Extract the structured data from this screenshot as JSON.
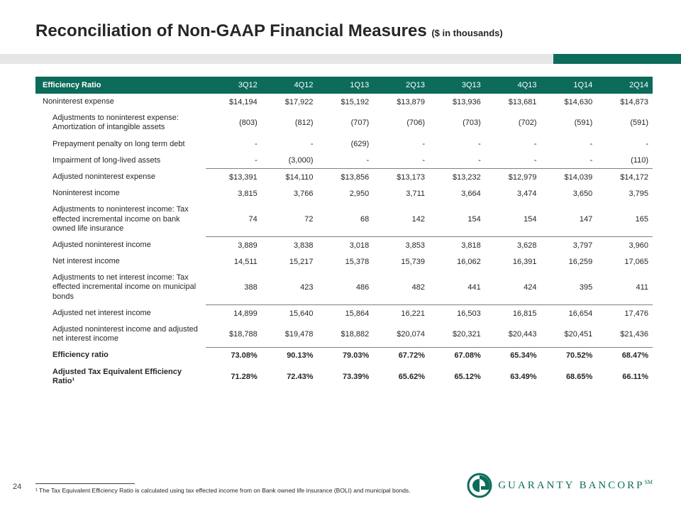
{
  "title_main": "Reconciliation of Non-GAAP Financial Measures ",
  "title_sub": "($ in thousands)",
  "header_label": "Efficiency Ratio",
  "periods": [
    "3Q12",
    "4Q12",
    "1Q13",
    "2Q13",
    "3Q13",
    "4Q13",
    "1Q14",
    "2Q14"
  ],
  "rows": [
    {
      "label": "Noninterest expense",
      "indent": 0,
      "bold": false,
      "underline": false,
      "cells": [
        "$14,194",
        "$17,922",
        "$15,192",
        "$13,879",
        "$13,936",
        "$13,681",
        "$14,630",
        "$14,873"
      ]
    },
    {
      "label": "Adjustments to noninterest expense: Amortization of intangible assets",
      "indent": 1,
      "bold": false,
      "underline": false,
      "cells": [
        "(803)",
        "(812)",
        "(707)",
        "(706)",
        "(703)",
        "(702)",
        "(591)",
        "(591)"
      ]
    },
    {
      "label": "Prepayment penalty on long term debt",
      "indent": 1,
      "bold": false,
      "underline": false,
      "cells": [
        "-",
        "-",
        "(629)",
        "-",
        "-",
        "-",
        "-",
        "-"
      ]
    },
    {
      "label": "Impairment of long-lived assets",
      "indent": 1,
      "bold": false,
      "underline": true,
      "cells": [
        "-",
        "(3,000)",
        "-",
        "-",
        "-",
        "-",
        "-",
        "(110)"
      ]
    },
    {
      "label": "Adjusted noninterest expense",
      "indent": 1,
      "bold": false,
      "underline": false,
      "cells": [
        "$13,391",
        "$14,110",
        "$13,856",
        "$13,173",
        "$13,232",
        "$12,979",
        "$14,039",
        "$14,172"
      ]
    },
    {
      "label": "Noninterest income",
      "indent": 1,
      "bold": false,
      "underline": false,
      "cells": [
        "3,815",
        "3,766",
        "2,950",
        "3,711",
        "3,664",
        "3,474",
        "3,650",
        "3,795"
      ]
    },
    {
      "label": "Adjustments to noninterest income: Tax effected incremental income on bank owned life insurance",
      "indent": 1,
      "bold": false,
      "underline": true,
      "cells": [
        "74",
        "72",
        "68",
        "142",
        "154",
        "154",
        "147",
        "165"
      ]
    },
    {
      "label": "Adjusted noninterest income",
      "indent": 1,
      "bold": false,
      "underline": false,
      "cells": [
        "3,889",
        "3,838",
        "3,018",
        "3,853",
        "3,818",
        "3,628",
        "3,797",
        "3,960"
      ]
    },
    {
      "label": "Net interest income",
      "indent": 1,
      "bold": false,
      "underline": false,
      "cells": [
        "14,511",
        "15,217",
        "15,378",
        "15,739",
        "16,062",
        "16,391",
        "16,259",
        "17,065"
      ]
    },
    {
      "label": "Adjustments to net interest income: Tax effected incremental income on municipal bonds",
      "indent": 1,
      "bold": false,
      "underline": true,
      "cells": [
        "388",
        "423",
        "486",
        "482",
        "441",
        "424",
        "395",
        "411"
      ]
    },
    {
      "label": "Adjusted net interest income",
      "indent": 1,
      "bold": false,
      "underline": false,
      "cells": [
        "14,899",
        "15,640",
        "15,864",
        "16,221",
        "16,503",
        "16,815",
        "16,654",
        "17,476"
      ]
    },
    {
      "label": "Adjusted noninterest income and adjusted net interest income",
      "indent": 1,
      "bold": false,
      "underline": true,
      "cells": [
        "$18,788",
        "$19,478",
        "$18,882",
        "$20,074",
        "$20,321",
        "$20,443",
        "$20,451",
        "$21,436"
      ]
    },
    {
      "label": "Efficiency ratio",
      "indent": 1,
      "bold": true,
      "underline": false,
      "cells": [
        "73.08%",
        "90.13%",
        "79.03%",
        "67.72%",
        "67.08%",
        "65.34%",
        "70.52%",
        "68.47%"
      ]
    },
    {
      "label": "Adjusted Tax Equivalent Efficiency Ratio¹",
      "indent": 1,
      "bold": true,
      "underline": false,
      "cells": [
        "71.28%",
        "72.43%",
        "73.39%",
        "65.62%",
        "65.12%",
        "63.49%",
        "68.65%",
        "66.11%"
      ]
    }
  ],
  "footnote": "¹ The Tax Equivalent Efficiency Ratio is calculated using tax effected income from on Bank owned life insurance (BOLI) and municipal bonds.",
  "page_number": "24",
  "logo_text": "GUARANTY BANCORP",
  "logo_sm": "SM",
  "colors": {
    "brand_green": "#0d6b5a",
    "bar_grey": "#e6e6e6",
    "text": "#262626"
  }
}
